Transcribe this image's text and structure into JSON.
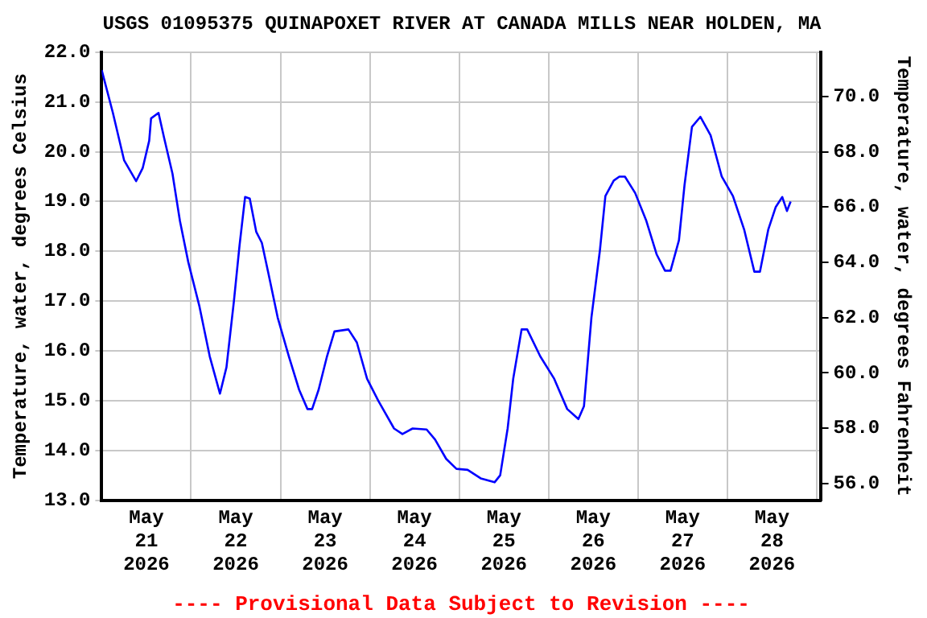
{
  "chart_data": {
    "type": "line",
    "title": "USGS 01095375 QUINAPOXET RIVER AT CANADA MILLS NEAR HOLDEN, MA",
    "ylabel": "Temperature, water, degrees Celsius",
    "y2label": "Temperature, water, degrees Fahrenheit",
    "annotations": [
      "---- Provisional Data Subject to Revision ----"
    ],
    "x": [
      "2026-05-21T00:00",
      "2026-05-21T03:00",
      "2026-05-21T06:00",
      "2026-05-21T09:15",
      "2026-05-21T11:00",
      "2026-05-21T12:45",
      "2026-05-21T13:15",
      "2026-05-21T15:15",
      "2026-05-21T16:45",
      "2026-05-21T19:00",
      "2026-05-21T21:00",
      "2026-05-21T23:15",
      "2026-05-22T02:15",
      "2026-05-22T05:00",
      "2026-05-22T07:45",
      "2026-05-22T09:30",
      "2026-05-22T11:30",
      "2026-05-22T13:00",
      "2026-05-22T14:30",
      "2026-05-22T15:45",
      "2026-05-22T17:30",
      "2026-05-22T19:00",
      "2026-05-22T20:45",
      "2026-05-22T23:15",
      "2026-05-23T02:15",
      "2026-05-23T05:00",
      "2026-05-23T07:15",
      "2026-05-23T08:30",
      "2026-05-23T10:15",
      "2026-05-23T12:30",
      "2026-05-23T14:30",
      "2026-05-23T18:15",
      "2026-05-23T20:30",
      "2026-05-23T23:15",
      "2026-05-24T02:15",
      "2026-05-24T06:30",
      "2026-05-24T08:45",
      "2026-05-24T11:30",
      "2026-05-24T15:15",
      "2026-05-24T17:30",
      "2026-05-24T20:30",
      "2026-05-24T23:15",
      "2026-05-25T02:15",
      "2026-05-25T05:45",
      "2026-05-25T09:30",
      "2026-05-25T11:00",
      "2026-05-25T13:00",
      "2026-05-25T14:30",
      "2026-05-25T16:45",
      "2026-05-25T18:15",
      "2026-05-25T21:45",
      "2026-05-26T01:30",
      "2026-05-26T05:00",
      "2026-05-26T08:00",
      "2026-05-26T09:30",
      "2026-05-26T11:30",
      "2026-05-26T13:45",
      "2026-05-26T15:15",
      "2026-05-26T17:30",
      "2026-05-26T19:00",
      "2026-05-26T20:30",
      "2026-05-26T23:15",
      "2026-05-27T02:15",
      "2026-05-27T05:00",
      "2026-05-27T07:15",
      "2026-05-27T08:45",
      "2026-05-27T11:00",
      "2026-05-27T12:30",
      "2026-05-27T14:30",
      "2026-05-27T16:45",
      "2026-05-27T19:30",
      "2026-05-27T22:30",
      "2026-05-28T01:30",
      "2026-05-28T04:30",
      "2026-05-28T07:15",
      "2026-05-28T08:45",
      "2026-05-28T11:00",
      "2026-05-28T13:00",
      "2026-05-28T14:45",
      "2026-05-28T16:00",
      "2026-05-28T17:00"
    ],
    "series": [
      {
        "color": "#0000ff",
        "values": [
          21.64,
          20.78,
          19.83,
          19.41,
          19.67,
          20.22,
          20.67,
          20.78,
          20.28,
          19.56,
          18.61,
          17.78,
          16.89,
          15.89,
          15.14,
          15.67,
          17.0,
          18.11,
          19.09,
          19.06,
          18.39,
          18.17,
          17.56,
          16.67,
          15.89,
          15.22,
          14.83,
          14.83,
          15.22,
          15.89,
          16.39,
          16.43,
          16.17,
          15.44,
          15.0,
          14.44,
          14.33,
          14.44,
          14.42,
          14.22,
          13.83,
          13.63,
          13.61,
          13.44,
          13.36,
          13.5,
          14.44,
          15.44,
          16.43,
          16.43,
          15.89,
          15.44,
          14.83,
          14.63,
          14.89,
          16.67,
          18.0,
          19.11,
          19.42,
          19.5,
          19.5,
          19.17,
          18.61,
          17.94,
          17.61,
          17.61,
          18.22,
          19.33,
          20.5,
          20.7,
          20.33,
          19.5,
          19.11,
          18.44,
          17.59,
          17.59,
          18.44,
          18.89,
          19.09,
          18.81,
          19.0
        ]
      }
    ],
    "xlim": [
      "2026-05-21T00:00",
      "2026-05-29T01:00"
    ],
    "xticks": [
      {
        "value": "2026-05-21T00:00",
        "label": null
      },
      {
        "value": "2026-05-21T12:00",
        "label": "May\n21\n2026"
      },
      {
        "value": "2026-05-22T00:00",
        "label": null
      },
      {
        "value": "2026-05-22T12:00",
        "label": "May\n22\n2026"
      },
      {
        "value": "2026-05-23T00:00",
        "label": null
      },
      {
        "value": "2026-05-23T12:00",
        "label": "May\n23\n2026"
      },
      {
        "value": "2026-05-24T00:00",
        "label": null
      },
      {
        "value": "2026-05-24T12:00",
        "label": "May\n24\n2026"
      },
      {
        "value": "2026-05-25T00:00",
        "label": null
      },
      {
        "value": "2026-05-25T12:00",
        "label": "May\n25\n2026"
      },
      {
        "value": "2026-05-26T00:00",
        "label": null
      },
      {
        "value": "2026-05-26T12:00",
        "label": "May\n26\n2026"
      },
      {
        "value": "2026-05-27T00:00",
        "label": null
      },
      {
        "value": "2026-05-27T12:00",
        "label": "May\n27\n2026"
      },
      {
        "value": "2026-05-28T00:00",
        "label": null
      },
      {
        "value": "2026-05-28T12:00",
        "label": "May\n28\n2026"
      },
      {
        "value": "2026-05-29T00:00",
        "label": null
      }
    ],
    "ylim": [
      13,
      22
    ],
    "yticks": [
      {
        "value": 13,
        "label": "13.0"
      },
      {
        "value": 14,
        "label": "14.0"
      },
      {
        "value": 15,
        "label": "15.0"
      },
      {
        "value": 16,
        "label": "16.0"
      },
      {
        "value": 17,
        "label": "17.0"
      },
      {
        "value": 18,
        "label": "18.0"
      },
      {
        "value": 19,
        "label": "19.0"
      },
      {
        "value": 20,
        "label": "20.0"
      },
      {
        "value": 21,
        "label": "21.0"
      },
      {
        "value": 22,
        "label": "22.0"
      }
    ],
    "y2lim": [
      55.4,
      71.6
    ],
    "y2ticks": [
      {
        "value": 56,
        "label": "56.0"
      },
      {
        "value": 58,
        "label": "58.0"
      },
      {
        "value": 60,
        "label": "60.0"
      },
      {
        "value": 62,
        "label": "62.0"
      },
      {
        "value": 64,
        "label": "64.0"
      },
      {
        "value": 66,
        "label": "66.0"
      },
      {
        "value": 68,
        "label": "68.0"
      },
      {
        "value": 70,
        "label": "70.0"
      }
    ],
    "grid": true,
    "legend": false,
    "marker": "none",
    "line_style": "solid"
  }
}
